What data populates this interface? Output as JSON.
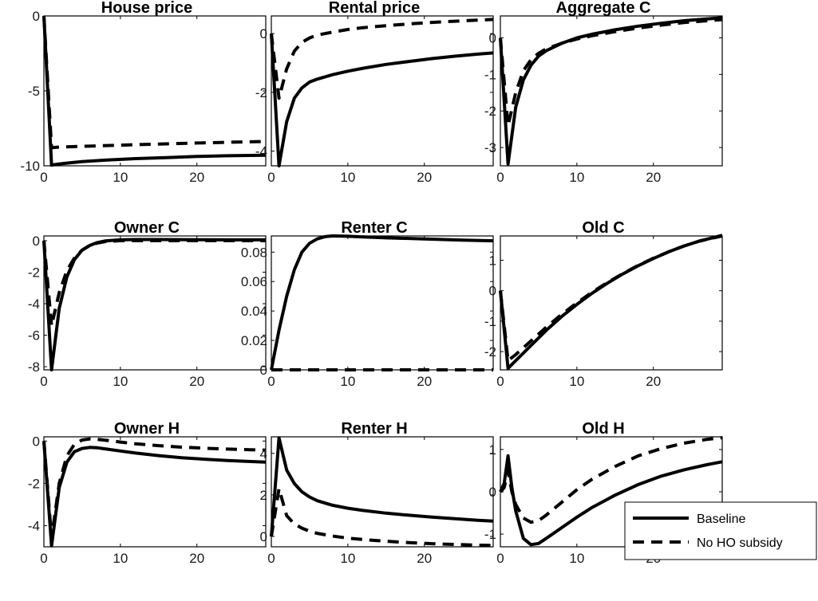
{
  "chart_data": [
    {
      "type": "line",
      "title": "House price",
      "xlim": [
        0,
        29
      ],
      "ylim": [
        -10,
        0
      ],
      "xticks": [
        "0",
        "10",
        "20"
      ],
      "xtick_values": [
        0,
        10,
        20
      ],
      "yticks": [
        "-10",
        "-5",
        "0"
      ],
      "ytick_values": [
        -10,
        -5,
        0
      ],
      "series": [
        {
          "name": "Baseline",
          "style": "solid",
          "x": [
            0,
            1,
            2,
            3,
            5,
            8,
            12,
            16,
            20,
            24,
            29
          ],
          "y": [
            0,
            -9.95,
            -9.88,
            -9.82,
            -9.72,
            -9.62,
            -9.52,
            -9.45,
            -9.38,
            -9.33,
            -9.3
          ]
        },
        {
          "name": "No HO subsidy",
          "style": "dashed",
          "x": [
            0,
            1,
            2,
            5,
            10,
            15,
            20,
            25,
            29
          ],
          "y": [
            0,
            -8.8,
            -8.75,
            -8.7,
            -8.62,
            -8.55,
            -8.48,
            -8.42,
            -8.38
          ]
        }
      ]
    },
    {
      "type": "line",
      "title": "Rental price",
      "xlim": [
        0,
        29
      ],
      "ylim": [
        -4.5,
        0.6
      ],
      "xticks": [
        "0",
        "10",
        "20"
      ],
      "xtick_values": [
        0,
        10,
        20
      ],
      "yticks": [
        "-4",
        "-2",
        "0"
      ],
      "ytick_values": [
        -4,
        -2,
        0
      ],
      "series": [
        {
          "name": "Baseline",
          "style": "solid",
          "x": [
            0,
            1,
            2,
            3,
            4,
            5,
            6,
            8,
            10,
            12,
            15,
            18,
            21,
            24,
            27,
            29
          ],
          "y": [
            0,
            -4.5,
            -3.0,
            -2.2,
            -1.85,
            -1.65,
            -1.55,
            -1.4,
            -1.28,
            -1.18,
            -1.05,
            -0.95,
            -0.85,
            -0.77,
            -0.7,
            -0.66
          ]
        },
        {
          "name": "No HO subsidy",
          "style": "dashed",
          "x": [
            0,
            1,
            2,
            3,
            4,
            5,
            6,
            8,
            10,
            12,
            15,
            18,
            21,
            24,
            27,
            29
          ],
          "y": [
            0,
            -2.2,
            -1.2,
            -0.6,
            -0.3,
            -0.15,
            -0.05,
            0.05,
            0.14,
            0.2,
            0.27,
            0.33,
            0.38,
            0.42,
            0.46,
            0.48
          ]
        }
      ]
    },
    {
      "type": "line",
      "title": "Aggregate C",
      "xlim": [
        0,
        29
      ],
      "ylim": [
        -3.5,
        0.6
      ],
      "xticks": [
        "0",
        "10",
        "20"
      ],
      "xtick_values": [
        0,
        10,
        20
      ],
      "yticks": [
        "-3",
        "-2",
        "-1",
        "0"
      ],
      "ytick_values": [
        -3,
        -2,
        -1,
        0
      ],
      "series": [
        {
          "name": "Baseline",
          "style": "solid",
          "x": [
            0,
            1,
            2,
            3,
            4,
            5,
            6,
            8,
            10,
            12,
            15,
            18,
            21,
            24,
            27,
            29
          ],
          "y": [
            0,
            -3.45,
            -1.9,
            -1.15,
            -0.75,
            -0.5,
            -0.35,
            -0.15,
            0.0,
            0.1,
            0.22,
            0.32,
            0.4,
            0.47,
            0.52,
            0.55
          ]
        },
        {
          "name": "No HO subsidy",
          "style": "dashed",
          "x": [
            0,
            1,
            2,
            3,
            4,
            5,
            6,
            8,
            10,
            12,
            15,
            18,
            21,
            24,
            27,
            29
          ],
          "y": [
            0,
            -2.4,
            -1.5,
            -0.9,
            -0.6,
            -0.42,
            -0.3,
            -0.15,
            -0.03,
            0.06,
            0.17,
            0.27,
            0.35,
            0.42,
            0.47,
            0.5
          ]
        }
      ]
    },
    {
      "type": "line",
      "title": "Owner C",
      "xlim": [
        0,
        29
      ],
      "ylim": [
        -8.2,
        0.3
      ],
      "xticks": [
        "0",
        "10",
        "20"
      ],
      "xtick_values": [
        0,
        10,
        20
      ],
      "yticks": [
        "-8",
        "-6",
        "-4",
        "-2",
        "0"
      ],
      "ytick_values": [
        -8,
        -6,
        -4,
        -2,
        0
      ],
      "series": [
        {
          "name": "Baseline",
          "style": "solid",
          "x": [
            0,
            1,
            2,
            3,
            4,
            5,
            6,
            7,
            8,
            10,
            12,
            15,
            20,
            25,
            29
          ],
          "y": [
            0,
            -8.2,
            -4.3,
            -2.3,
            -1.2,
            -0.6,
            -0.3,
            -0.12,
            -0.02,
            0.05,
            0.07,
            0.07,
            0.06,
            0.05,
            0.05
          ]
        },
        {
          "name": "No HO subsidy",
          "style": "dashed",
          "x": [
            0,
            1,
            2,
            3,
            4,
            5,
            6,
            7,
            8,
            10,
            12,
            15,
            20,
            25,
            29
          ],
          "y": [
            0,
            -5.4,
            -3.3,
            -1.9,
            -1.1,
            -0.6,
            -0.3,
            -0.15,
            -0.06,
            0.0,
            0.0,
            0.0,
            0.0,
            0.0,
            0.0
          ]
        }
      ]
    },
    {
      "type": "line",
      "title": "Renter C",
      "xlim": [
        0,
        29
      ],
      "ylim": [
        0,
        0.091
      ],
      "xticks": [
        "0",
        "10",
        "20"
      ],
      "xtick_values": [
        0,
        10,
        20
      ],
      "yticks": [
        "0",
        "0.02",
        "0.04",
        "0.06",
        "0.08"
      ],
      "ytick_values": [
        0,
        0.02,
        0.04,
        0.06,
        0.08
      ],
      "series": [
        {
          "name": "Baseline",
          "style": "solid",
          "x": [
            0,
            1,
            2,
            3,
            4,
            5,
            6,
            7,
            8,
            10,
            12,
            15,
            20,
            25,
            29
          ],
          "y": [
            0,
            0.027,
            0.05,
            0.068,
            0.08,
            0.086,
            0.089,
            0.0905,
            0.091,
            0.0908,
            0.0903,
            0.0897,
            0.089,
            0.0882,
            0.0877
          ]
        },
        {
          "name": "No HO subsidy",
          "style": "dashed",
          "x": [
            0,
            29
          ],
          "y": [
            0,
            0
          ]
        }
      ]
    },
    {
      "type": "line",
      "title": "Old C",
      "xlim": [
        0,
        29
      ],
      "ylim": [
        -2.6,
        1.8
      ],
      "xticks": [
        "0",
        "10",
        "20"
      ],
      "xtick_values": [
        0,
        10,
        20
      ],
      "yticks": [
        "-2",
        "-1",
        "0",
        "1"
      ],
      "ytick_values": [
        -2,
        -1,
        0,
        1
      ],
      "series": [
        {
          "name": "Baseline",
          "style": "solid",
          "x": [
            0,
            1,
            2,
            4,
            6,
            8,
            10,
            12,
            14,
            16,
            18,
            20,
            22,
            24,
            26,
            29
          ],
          "y": [
            0,
            -2.55,
            -2.3,
            -1.8,
            -1.3,
            -0.85,
            -0.45,
            -0.08,
            0.25,
            0.55,
            0.82,
            1.06,
            1.28,
            1.47,
            1.63,
            1.82
          ]
        },
        {
          "name": "No HO subsidy",
          "style": "dashed",
          "x": [
            0,
            1,
            2,
            4,
            6,
            8,
            10,
            12,
            14,
            16,
            18,
            20,
            22,
            24,
            26,
            29
          ],
          "y": [
            0,
            -2.3,
            -2.1,
            -1.65,
            -1.2,
            -0.78,
            -0.4,
            -0.05,
            0.27,
            0.56,
            0.83,
            1.07,
            1.28,
            1.47,
            1.63,
            1.8
          ]
        }
      ]
    },
    {
      "type": "line",
      "title": "Owner H",
      "xlim": [
        0,
        29
      ],
      "ylim": [
        -5,
        0.2
      ],
      "xticks": [
        "0",
        "10",
        "20"
      ],
      "xtick_values": [
        0,
        10,
        20
      ],
      "yticks": [
        "-4",
        "-2",
        "0"
      ],
      "ytick_values": [
        -4,
        -2,
        0
      ],
      "series": [
        {
          "name": "Baseline",
          "style": "solid",
          "x": [
            0,
            1,
            2,
            3,
            4,
            5,
            6,
            7,
            8,
            10,
            12,
            15,
            18,
            21,
            24,
            27,
            29
          ],
          "y": [
            0,
            -4.95,
            -2.2,
            -1.0,
            -0.5,
            -0.35,
            -0.3,
            -0.32,
            -0.37,
            -0.47,
            -0.57,
            -0.69,
            -0.79,
            -0.86,
            -0.92,
            -0.97,
            -1.0
          ]
        },
        {
          "name": "No HO subsidy",
          "style": "dashed",
          "x": [
            0,
            1,
            2,
            3,
            4,
            5,
            6,
            7,
            8,
            10,
            12,
            15,
            18,
            21,
            24,
            27,
            29
          ],
          "y": [
            0,
            -4.6,
            -2.0,
            -0.7,
            -0.15,
            0.05,
            0.1,
            0.08,
            0.04,
            -0.05,
            -0.13,
            -0.22,
            -0.29,
            -0.34,
            -0.38,
            -0.41,
            -0.43
          ]
        }
      ]
    },
    {
      "type": "line",
      "title": "Renter H",
      "xlim": [
        0,
        29
      ],
      "ylim": [
        -0.5,
        4.8
      ],
      "xticks": [
        "0",
        "10",
        "20"
      ],
      "xtick_values": [
        0,
        10,
        20
      ],
      "yticks": [
        "0",
        "2",
        "4"
      ],
      "ytick_values": [
        0,
        2,
        4
      ],
      "series": [
        {
          "name": "Baseline",
          "style": "solid",
          "x": [
            0,
            1,
            2,
            3,
            4,
            5,
            6,
            8,
            10,
            12,
            15,
            18,
            21,
            24,
            27,
            29
          ],
          "y": [
            0,
            4.75,
            3.2,
            2.55,
            2.15,
            1.9,
            1.72,
            1.5,
            1.36,
            1.25,
            1.12,
            1.02,
            0.93,
            0.85,
            0.78,
            0.74
          ]
        },
        {
          "name": "No HO subsidy",
          "style": "dashed",
          "x": [
            0,
            1,
            2,
            3,
            4,
            5,
            6,
            8,
            10,
            12,
            15,
            18,
            21,
            24,
            27,
            29
          ],
          "y": [
            0,
            2.3,
            1.0,
            0.6,
            0.4,
            0.25,
            0.15,
            0.02,
            -0.08,
            -0.15,
            -0.23,
            -0.3,
            -0.35,
            -0.39,
            -0.42,
            -0.44
          ]
        }
      ]
    },
    {
      "type": "line",
      "title": "Old H",
      "xlim": [
        0,
        29
      ],
      "ylim": [
        -1.3,
        1.3
      ],
      "xticks": [
        "0",
        "10",
        "20"
      ],
      "xtick_values": [
        0,
        10,
        20
      ],
      "yticks": [
        "-1",
        "0",
        "1"
      ],
      "ytick_values": [
        -1,
        0,
        1
      ],
      "legend": {
        "position": "bottom-right",
        "entries": [
          "Baseline",
          "No HO subsidy"
        ]
      },
      "series": [
        {
          "name": "Baseline",
          "style": "solid",
          "x": [
            0,
            0.5,
            1,
            1.5,
            2,
            3,
            4,
            5,
            6,
            8,
            10,
            12,
            15,
            18,
            21,
            24,
            27,
            29
          ],
          "y": [
            0,
            0.2,
            0.85,
            0.1,
            -0.45,
            -1.1,
            -1.25,
            -1.22,
            -1.1,
            -0.85,
            -0.6,
            -0.37,
            -0.08,
            0.17,
            0.37,
            0.52,
            0.64,
            0.71
          ]
        },
        {
          "name": "No HO subsidy",
          "style": "dashed",
          "x": [
            0,
            0.5,
            1,
            1.5,
            2,
            3,
            4,
            5,
            6,
            8,
            10,
            12,
            15,
            18,
            21,
            24,
            27,
            29
          ],
          "y": [
            0,
            0.1,
            0.5,
            0.0,
            -0.3,
            -0.62,
            -0.72,
            -0.68,
            -0.55,
            -0.25,
            0.05,
            0.3,
            0.6,
            0.85,
            1.02,
            1.15,
            1.24,
            1.28
          ]
        }
      ]
    }
  ]
}
